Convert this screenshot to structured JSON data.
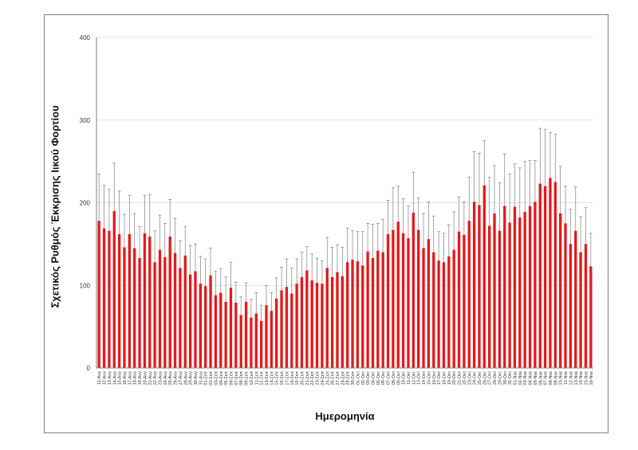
{
  "chart_data": {
    "type": "bar",
    "xlabel": "Ημερομηνία",
    "ylabel": "Σχετικός Ρυθμός Έκκρισης Ιικού Φορτίου",
    "ylim": [
      0,
      400
    ],
    "yticks": [
      0,
      100,
      200,
      300,
      400
    ],
    "grid": true,
    "bar_color": "#e3191b",
    "error_color": "#7f7f7f",
    "grid_color": "#d9d9d9",
    "categories": [
      "11-Αυγ",
      "12-Αυγ",
      "13-Αυγ",
      "14-Αυγ",
      "15-Αυγ",
      "16-Αυγ",
      "17-Αυγ",
      "18-Αυγ",
      "19-Αυγ",
      "20-Αυγ",
      "21-Αυγ",
      "22-Αυγ",
      "23-Αυγ",
      "24-Αυγ",
      "25-Αυγ",
      "26-Αυγ",
      "27-Αυγ",
      "28-Αυγ",
      "29-Αυγ",
      "30-Αυγ",
      "31-Αυγ",
      "01-Σεπ",
      "02-Σεπ",
      "03-Σεπ",
      "04-Σεπ",
      "05-Σεπ",
      "06-Σεπ",
      "07-Σεπ",
      "08-Σεπ",
      "09-Σεπ",
      "10-Σεπ",
      "11-Σεπ",
      "12-Σεπ",
      "13-Σεπ",
      "14-Σεπ",
      "15-Σεπ",
      "16-Σεπ",
      "17-Σεπ",
      "18-Σεπ",
      "19-Σεπ",
      "20-Σεπ",
      "21-Σεπ",
      "22-Σεπ",
      "23-Σεπ",
      "24-Σεπ",
      "25-Σεπ",
      "26-Σεπ",
      "27-Σεπ",
      "28-Σεπ",
      "29-Σεπ",
      "30-Σεπ",
      "01-Οκτ",
      "02-Οκτ",
      "03-Οκτ",
      "04-Οκτ",
      "05-Οκτ",
      "06-Οκτ",
      "07-Οκτ",
      "08-Οκτ",
      "09-Οκτ",
      "10-Οκτ",
      "11-Οκτ",
      "12-Οκτ",
      "13-Οκτ",
      "14-Οκτ",
      "15-Οκτ",
      "16-Οκτ",
      "17-Οκτ",
      "18-Οκτ",
      "19-Οκτ",
      "20-Οκτ",
      "21-Οκτ",
      "22-Οκτ",
      "23-Οκτ",
      "24-Οκτ",
      "25-Οκτ",
      "26-Οκτ",
      "27-Οκτ",
      "28-Οκτ",
      "29-Οκτ",
      "30-Οκτ",
      "31-Οκτ",
      "01-Νοε",
      "02-Νοε",
      "03-Νοε",
      "04-Νοε",
      "05-Νοε",
      "06-Νοε",
      "07-Νοε",
      "08-Νοε",
      "09-Νοε",
      "10-Νοε",
      "11-Νοε",
      "12-Νοε",
      "13-Νοε",
      "14-Νοε",
      "15-Νοε",
      "16-Νοε"
    ],
    "values": [
      178,
      169,
      166,
      190,
      162,
      146,
      162,
      145,
      133,
      163,
      159,
      128,
      143,
      134,
      159,
      139,
      121,
      136,
      113,
      117,
      102,
      99,
      112,
      88,
      91,
      80,
      97,
      79,
      64,
      80,
      61,
      66,
      57,
      76,
      69,
      84,
      94,
      98,
      90,
      102,
      110,
      118,
      106,
      103,
      102,
      121,
      110,
      116,
      111,
      128,
      131,
      129,
      124,
      141,
      133,
      142,
      140,
      162,
      167,
      177,
      163,
      157,
      188,
      167,
      145,
      156,
      140,
      130,
      128,
      135,
      143,
      165,
      161,
      178,
      201,
      197,
      221,
      172,
      187,
      166,
      196,
      176,
      195,
      182,
      189,
      196,
      201,
      223,
      220,
      230,
      225,
      187,
      175,
      150,
      166,
      140,
      150,
      123
    ],
    "errors": [
      57,
      52,
      50,
      58,
      52,
      40,
      47,
      42,
      38,
      46,
      51,
      38,
      42,
      41,
      45,
      42,
      33,
      35,
      35,
      33,
      33,
      33,
      33,
      29,
      29,
      30,
      31,
      25,
      22,
      23,
      22,
      25,
      19,
      24,
      22,
      25,
      28,
      34,
      31,
      30,
      30,
      29,
      32,
      30,
      28,
      37,
      36,
      33,
      35,
      41,
      35,
      36,
      41,
      34,
      41,
      33,
      40,
      41,
      51,
      43,
      42,
      39,
      49,
      39,
      42,
      45,
      44,
      35,
      35,
      38,
      46,
      42,
      40,
      53,
      61,
      63,
      54,
      59,
      58,
      58,
      63,
      59,
      52,
      60,
      61,
      55,
      50,
      67,
      69,
      55,
      58,
      57,
      45,
      42,
      53,
      43,
      44,
      40
    ]
  }
}
